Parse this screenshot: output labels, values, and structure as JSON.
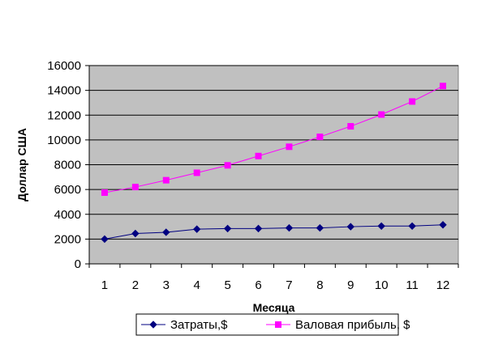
{
  "chart_data": {
    "type": "line",
    "title": "",
    "xlabel": "Месяца",
    "ylabel": "Доллар США",
    "categories": [
      "1",
      "2",
      "3",
      "4",
      "5",
      "6",
      "7",
      "8",
      "9",
      "10",
      "11",
      "12"
    ],
    "ylim": [
      0,
      16000
    ],
    "yticks": [
      0,
      2000,
      4000,
      6000,
      8000,
      10000,
      12000,
      14000,
      16000
    ],
    "grid": true,
    "legend_position": "bottom",
    "plot_background": "#c0c0c0",
    "series": [
      {
        "name": "Затраты,$",
        "color": "#000080",
        "marker": "diamond",
        "values": [
          2000,
          2450,
          2550,
          2800,
          2850,
          2850,
          2900,
          2900,
          3000,
          3050,
          3050,
          3150
        ]
      },
      {
        "name": "Валовая прибыль, $",
        "color": "#ff00ff",
        "marker": "square",
        "values": [
          5750,
          6200,
          6750,
          7350,
          7950,
          8700,
          9450,
          10250,
          11100,
          12050,
          13100,
          14350
        ]
      }
    ]
  }
}
